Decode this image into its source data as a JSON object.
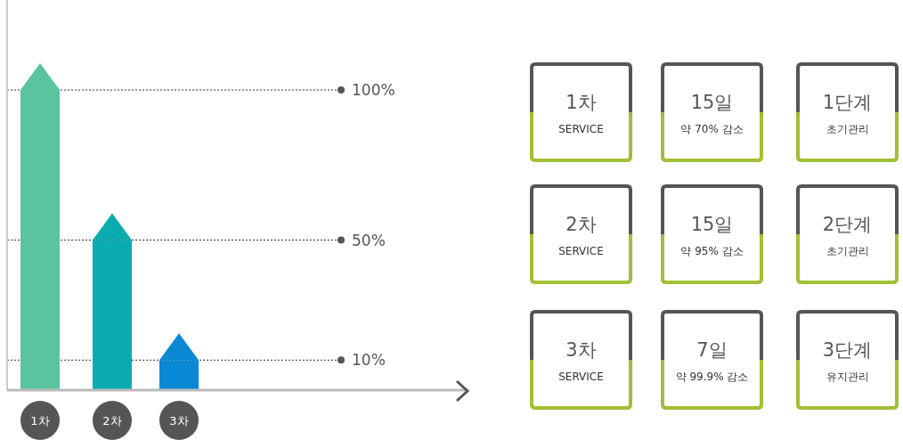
{
  "chart_data": [
    {
      "type": "bar",
      "categories": [
        "1차",
        "2차",
        "3차"
      ],
      "series": [
        {
          "values": [
            100,
            50,
            10
          ],
          "colors": [
            "#5bc49f",
            "#0aacb0",
            "#0a88d4"
          ]
        }
      ],
      "ylim": [
        0,
        130
      ],
      "tick_labels": "x",
      "ref_lines": [
        {
          "axis": "y",
          "value": 100,
          "label": "100%",
          "color": "#333333",
          "line_style": "dotted"
        },
        {
          "axis": "y",
          "value": 50,
          "label": "50%",
          "color": "#333333",
          "line_style": "dotted"
        },
        {
          "axis": "y",
          "value": 10,
          "label": "10%",
          "color": "#333333",
          "line_style": "dotted"
        }
      ]
    },
    {
      "type": "other",
      "annotations": [
        "1차",
        "SERVICE",
        "15일",
        "약 70% 감소",
        "1단계",
        "초기관리",
        "2차",
        "SERVICE",
        "15일",
        "약 95% 감소",
        "2단계",
        "초기관리",
        "3차",
        "SERVICE",
        "7일",
        "약 99.9% 감소",
        "3단계",
        "유지관리"
      ]
    }
  ]
}
